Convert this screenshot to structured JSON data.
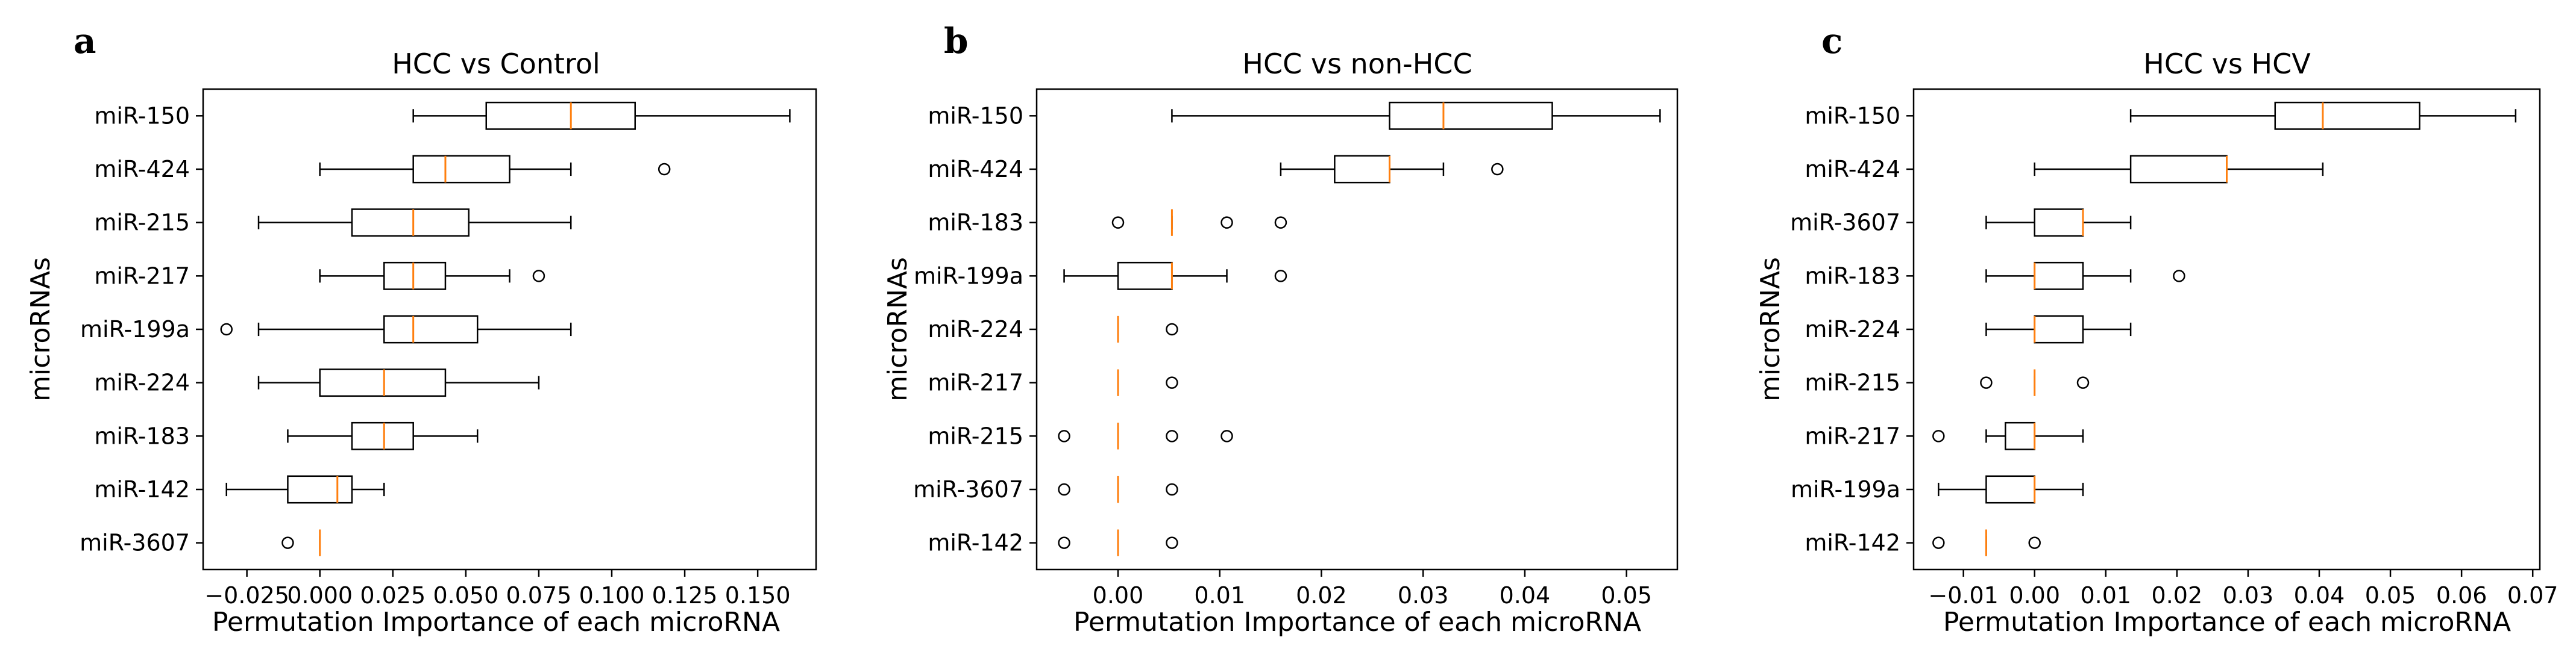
{
  "chart_data": [
    {
      "type": "boxplot",
      "panel_label": "a",
      "title": "HCC vs Control",
      "xlabel": "Permutation Importance of each microRNA",
      "ylabel": "microRNAs",
      "xlim": [
        -0.04,
        0.17
      ],
      "xticks": [
        -0.025,
        0.0,
        0.025,
        0.05,
        0.075,
        0.1,
        0.125,
        0.15
      ],
      "xtick_labels": [
        "−0.025",
        "0.000",
        "0.025",
        "0.050",
        "0.075",
        "0.100",
        "0.125",
        "0.150"
      ],
      "categories": [
        "miR-150",
        "miR-424",
        "miR-215",
        "miR-217",
        "miR-199a",
        "miR-224",
        "miR-183",
        "miR-142",
        "miR-3607"
      ],
      "boxes": [
        {
          "whislo": 0.032,
          "q1": 0.057,
          "med": 0.086,
          "q3": 0.108,
          "whishi": 0.161,
          "fliers": []
        },
        {
          "whislo": 0.0,
          "q1": 0.032,
          "med": 0.043,
          "q3": 0.065,
          "whishi": 0.086,
          "fliers": [
            0.118
          ]
        },
        {
          "whislo": -0.021,
          "q1": 0.011,
          "med": 0.032,
          "q3": 0.051,
          "whishi": 0.086,
          "fliers": []
        },
        {
          "whislo": 0.0,
          "q1": 0.022,
          "med": 0.032,
          "q3": 0.043,
          "whishi": 0.065,
          "fliers": [
            0.075
          ]
        },
        {
          "whislo": -0.021,
          "q1": 0.022,
          "med": 0.032,
          "q3": 0.054,
          "whishi": 0.086,
          "fliers": [
            -0.032
          ]
        },
        {
          "whislo": -0.021,
          "q1": 0.0,
          "med": 0.022,
          "q3": 0.043,
          "whishi": 0.075,
          "fliers": []
        },
        {
          "whislo": -0.011,
          "q1": 0.011,
          "med": 0.022,
          "q3": 0.032,
          "whishi": 0.054,
          "fliers": []
        },
        {
          "whislo": -0.032,
          "q1": -0.011,
          "med": 0.006,
          "q3": 0.011,
          "whishi": 0.022,
          "fliers": []
        },
        {
          "whislo": 0.0,
          "q1": 0.0,
          "med": 0.0,
          "q3": 0.0,
          "whishi": 0.0,
          "fliers": [
            -0.011
          ]
        }
      ]
    },
    {
      "type": "boxplot",
      "panel_label": "b",
      "title": "HCC vs non-HCC",
      "xlabel": "Permutation Importance of each microRNA",
      "ylabel": "microRNAs",
      "xlim": [
        -0.008,
        0.055
      ],
      "xticks": [
        0.0,
        0.01,
        0.02,
        0.03,
        0.04,
        0.05
      ],
      "xtick_labels": [
        "0.00",
        "0.01",
        "0.02",
        "0.03",
        "0.04",
        "0.05"
      ],
      "categories": [
        "miR-150",
        "miR-424",
        "miR-183",
        "miR-199a",
        "miR-224",
        "miR-217",
        "miR-215",
        "miR-3607",
        "miR-142"
      ],
      "boxes": [
        {
          "whislo": 0.0053,
          "q1": 0.0267,
          "med": 0.032,
          "q3": 0.0427,
          "whishi": 0.0533,
          "fliers": []
        },
        {
          "whislo": 0.016,
          "q1": 0.0213,
          "med": 0.0267,
          "q3": 0.0267,
          "whishi": 0.032,
          "fliers": [
            0.0373
          ]
        },
        {
          "whislo": 0.0053,
          "q1": 0.0053,
          "med": 0.0053,
          "q3": 0.0053,
          "whishi": 0.0053,
          "fliers": [
            0.0,
            0.0107,
            0.016
          ]
        },
        {
          "whislo": -0.0053,
          "q1": 0.0,
          "med": 0.0053,
          "q3": 0.0053,
          "whishi": 0.0107,
          "fliers": [
            0.016
          ]
        },
        {
          "whislo": 0.0,
          "q1": 0.0,
          "med": 0.0,
          "q3": 0.0,
          "whishi": 0.0,
          "fliers": [
            0.0053
          ]
        },
        {
          "whislo": 0.0,
          "q1": 0.0,
          "med": 0.0,
          "q3": 0.0,
          "whishi": 0.0,
          "fliers": [
            0.0053
          ]
        },
        {
          "whislo": 0.0,
          "q1": 0.0,
          "med": 0.0,
          "q3": 0.0,
          "whishi": 0.0,
          "fliers": [
            -0.0053,
            0.0053,
            0.0107
          ]
        },
        {
          "whislo": 0.0,
          "q1": 0.0,
          "med": 0.0,
          "q3": 0.0,
          "whishi": 0.0,
          "fliers": [
            -0.0053,
            0.0053
          ]
        },
        {
          "whislo": 0.0,
          "q1": 0.0,
          "med": 0.0,
          "q3": 0.0,
          "whishi": 0.0,
          "fliers": [
            -0.0053,
            0.0053
          ]
        }
      ]
    },
    {
      "type": "boxplot",
      "panel_label": "c",
      "title": "HCC vs HCV",
      "xlabel": "Permutation Importance of each microRNA",
      "ylabel": "microRNAs",
      "xlim": [
        -0.017,
        0.071
      ],
      "xticks": [
        -0.01,
        0.0,
        0.01,
        0.02,
        0.03,
        0.04,
        0.05,
        0.06,
        0.07
      ],
      "xtick_labels": [
        "−0.01",
        "0.00",
        "0.01",
        "0.02",
        "0.03",
        "0.04",
        "0.05",
        "0.06",
        "0.07"
      ],
      "categories": [
        "miR-150",
        "miR-424",
        "miR-3607",
        "miR-183",
        "miR-224",
        "miR-215",
        "miR-217",
        "miR-199a",
        "miR-142"
      ],
      "boxes": [
        {
          "whislo": 0.0135,
          "q1": 0.0338,
          "med": 0.0405,
          "q3": 0.0541,
          "whishi": 0.0676,
          "fliers": []
        },
        {
          "whislo": 0.0,
          "q1": 0.0135,
          "med": 0.027,
          "q3": 0.027,
          "whishi": 0.0405,
          "fliers": []
        },
        {
          "whislo": -0.0068,
          "q1": 0.0,
          "med": 0.0068,
          "q3": 0.0068,
          "whishi": 0.0135,
          "fliers": []
        },
        {
          "whislo": -0.0068,
          "q1": 0.0,
          "med": 0.0,
          "q3": 0.0068,
          "whishi": 0.0135,
          "fliers": [
            0.0203
          ]
        },
        {
          "whislo": -0.0068,
          "q1": 0.0,
          "med": 0.0,
          "q3": 0.0068,
          "whishi": 0.0135,
          "fliers": []
        },
        {
          "whislo": 0.0,
          "q1": 0.0,
          "med": 0.0,
          "q3": 0.0,
          "whishi": 0.0,
          "fliers": [
            -0.0068,
            0.0068
          ]
        },
        {
          "whislo": -0.0068,
          "q1": -0.0041,
          "med": 0.0,
          "q3": 0.0,
          "whishi": 0.0068,
          "fliers": [
            -0.0135
          ]
        },
        {
          "whislo": -0.0135,
          "q1": -0.0068,
          "med": 0.0,
          "q3": 0.0,
          "whishi": 0.0068,
          "fliers": []
        },
        {
          "whislo": -0.0068,
          "q1": -0.0068,
          "med": -0.0068,
          "q3": -0.0068,
          "whishi": -0.0068,
          "fliers": [
            -0.0135,
            0.0
          ]
        }
      ]
    }
  ],
  "colors": {
    "median": "#ff7f0e",
    "box": "#000000",
    "background": "#ffffff"
  }
}
